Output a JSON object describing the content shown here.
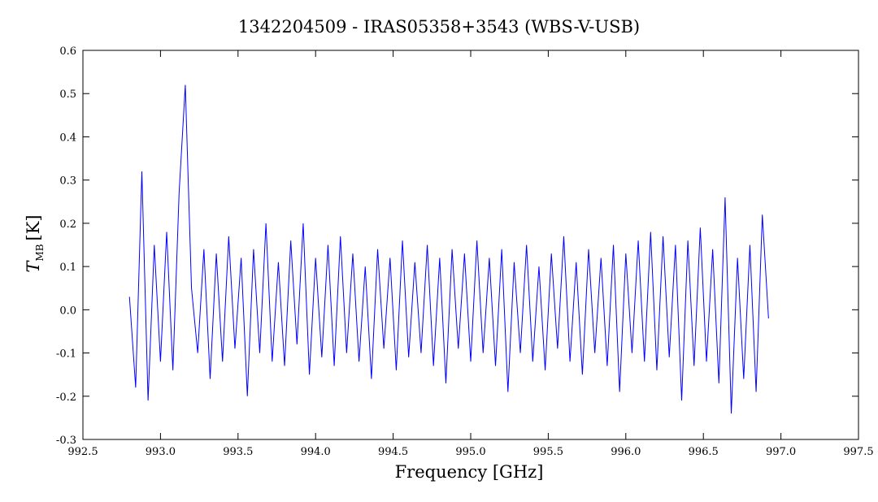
{
  "chart_data": {
    "type": "line",
    "title": "1342204509 - IRAS05358+3543 (WBS-V-USB)",
    "xlabel": "Frequency [GHz]",
    "ylabel": {
      "symbol": "T",
      "subscript": "MB",
      "unit": "[K]"
    },
    "xlim": [
      992.5,
      997.5
    ],
    "ylim": [
      -0.3,
      0.6
    ],
    "xticks": [
      {
        "value": 992.5,
        "label": "992.5"
      },
      {
        "value": 993,
        "label": "993.0"
      },
      {
        "value": 993.5,
        "label": "993.5"
      },
      {
        "value": 994,
        "label": "994.0"
      },
      {
        "value": 994.5,
        "label": "994.5"
      },
      {
        "value": 995,
        "label": "995.0"
      },
      {
        "value": 995.5,
        "label": "995.5"
      },
      {
        "value": 996,
        "label": "996.0"
      },
      {
        "value": 996.5,
        "label": "996.5"
      },
      {
        "value": 997,
        "label": "997.0"
      },
      {
        "value": 997.5,
        "label": "997.5"
      }
    ],
    "yticks": [
      -0.3,
      -0.2,
      -0.1,
      {
        "value": 0,
        "label": "0.0"
      },
      0.1,
      0.2,
      0.3,
      0.4,
      0.5,
      0.6
    ],
    "series": [
      {
        "color": "#0000ff",
        "x": [
          992.8,
          992.84,
          992.88,
          992.92,
          992.96,
          993.0,
          993.04,
          993.08,
          993.12,
          993.16,
          993.2,
          993.24,
          993.28,
          993.32,
          993.36,
          993.4,
          993.44,
          993.48,
          993.52,
          993.56,
          993.6,
          993.64,
          993.68,
          993.72,
          993.76,
          993.8,
          993.84,
          993.88,
          993.92,
          993.96,
          994.0,
          994.04,
          994.08,
          994.12,
          994.16,
          994.2,
          994.24,
          994.28,
          994.32,
          994.36,
          994.4,
          994.44,
          994.48,
          994.52,
          994.56,
          994.6,
          994.64,
          994.68,
          994.72,
          994.76,
          994.8,
          994.84,
          994.88,
          994.92,
          994.96,
          995.0,
          995.04,
          995.08,
          995.12,
          995.16,
          995.2,
          995.24,
          995.28,
          995.32,
          995.36,
          995.4,
          995.44,
          995.48,
          995.52,
          995.56,
          995.6,
          995.64,
          995.68,
          995.72,
          995.76,
          995.8,
          995.84,
          995.88,
          995.92,
          995.96,
          996.0,
          996.04,
          996.08,
          996.12,
          996.16,
          996.2,
          996.24,
          996.28,
          996.32,
          996.36,
          996.4,
          996.44,
          996.48,
          996.52,
          996.56,
          996.6,
          996.64,
          996.68,
          996.72,
          996.76,
          996.8,
          996.84,
          996.88,
          996.92
        ],
        "values": [
          0.03,
          -0.18,
          0.32,
          -0.21,
          0.15,
          -0.12,
          0.18,
          -0.14,
          0.27,
          0.52,
          0.05,
          -0.1,
          0.14,
          -0.16,
          0.13,
          -0.12,
          0.17,
          -0.09,
          0.12,
          -0.2,
          0.14,
          -0.1,
          0.2,
          -0.12,
          0.11,
          -0.13,
          0.16,
          -0.08,
          0.2,
          -0.15,
          0.12,
          -0.11,
          0.15,
          -0.13,
          0.17,
          -0.1,
          0.13,
          -0.12,
          0.1,
          -0.16,
          0.14,
          -0.09,
          0.12,
          -0.14,
          0.16,
          -0.11,
          0.11,
          -0.1,
          0.15,
          -0.13,
          0.12,
          -0.17,
          0.14,
          -0.09,
          0.13,
          -0.12,
          0.16,
          -0.1,
          0.12,
          -0.13,
          0.14,
          -0.19,
          0.11,
          -0.1,
          0.15,
          -0.12,
          0.1,
          -0.14,
          0.13,
          -0.09,
          0.17,
          -0.12,
          0.11,
          -0.15,
          0.14,
          -0.1,
          0.12,
          -0.13,
          0.15,
          -0.19,
          0.13,
          -0.1,
          0.16,
          -0.12,
          0.18,
          -0.14,
          0.17,
          -0.11,
          0.15,
          -0.21,
          0.16,
          -0.13,
          0.19,
          -0.12,
          0.14,
          -0.17,
          0.26,
          -0.24,
          0.12,
          -0.16,
          0.15,
          -0.19,
          0.22,
          -0.02
        ]
      }
    ]
  }
}
